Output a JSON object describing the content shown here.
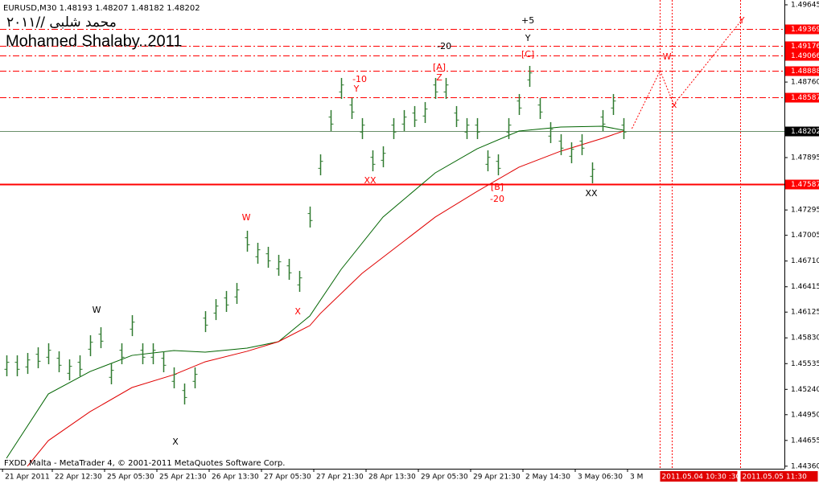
{
  "header": {
    "symbol": "EURUSD,M30  1.48193 1.48207 1.48182 1.48202",
    "arabic": "محمد شلبى //٢٠١١",
    "author": "Mohamed Shalaby..2011",
    "footer": "FXDD Malta - MetaTrader 4, © 2001-2011 MetaQuotes Software Corp."
  },
  "chart_data": {
    "type": "ohlc",
    "color": "#2f7a2f",
    "open": [
      1.4547,
      1.4555,
      1.45497,
      1.45642,
      1.45608,
      1.45596,
      1.45424,
      1.4555,
      1.457,
      1.45872,
      1.45378,
      1.45688,
      1.4593,
      1.45688,
      1.45608,
      1.45596,
      1.45332,
      1.45227,
      1.45332,
      1.46056,
      1.46114,
      1.46287,
      1.46299,
      1.46977,
      1.46759,
      1.46793,
      1.46621,
      1.46655,
      1.46437,
      1.47254,
      1.47772,
      1.48359,
      1.48647,
      1.48497,
      1.48187,
      1.47898,
      1.47864,
      1.48267,
      1.48279,
      1.48405,
      1.48371,
      1.48727,
      1.48647,
      1.48405,
      1.48187,
      1.48267,
      1.47818,
      1.47852,
      1.48187,
      1.48543,
      1.48785,
      1.48497,
      1.48141,
      1.48083,
      1.4791,
      1.48083,
      1.4768,
      1.48359,
      1.48463,
      1.48267
    ],
    "high": [
      1.4563,
      1.4563,
      1.45657,
      1.45722,
      1.45768,
      1.45676,
      1.45584,
      1.4563,
      1.4586,
      1.45952,
      1.45538,
      1.45768,
      1.4609,
      1.45768,
      1.45768,
      1.45676,
      1.45492,
      1.45307,
      1.45492,
      1.46136,
      1.46274,
      1.46367,
      1.46459,
      1.47057,
      1.46919,
      1.46873,
      1.46781,
      1.46735,
      1.46597,
      1.47334,
      1.47932,
      1.48439,
      1.48807,
      1.48577,
      1.48347,
      1.47978,
      1.48024,
      1.48347,
      1.48439,
      1.48485,
      1.48531,
      1.48807,
      1.48807,
      1.48485,
      1.48347,
      1.48347,
      1.47978,
      1.47932,
      1.48347,
      1.48623,
      1.48945,
      1.48577,
      1.48301,
      1.48163,
      1.4807,
      1.48163,
      1.4784,
      1.48439,
      1.48623,
      1.48347
    ],
    "low": [
      1.4539,
      1.4539,
      1.45417,
      1.45482,
      1.45528,
      1.45436,
      1.45344,
      1.4539,
      1.4562,
      1.45712,
      1.45298,
      1.45528,
      1.4585,
      1.45528,
      1.45528,
      1.45436,
      1.45252,
      1.45067,
      1.45252,
      1.45896,
      1.46034,
      1.46127,
      1.46219,
      1.46817,
      1.46679,
      1.46633,
      1.46541,
      1.46495,
      1.46357,
      1.47094,
      1.47692,
      1.48199,
      1.48567,
      1.48337,
      1.48107,
      1.47738,
      1.47784,
      1.48107,
      1.48199,
      1.48245,
      1.48291,
      1.48567,
      1.48567,
      1.48245,
      1.48107,
      1.48107,
      1.47738,
      1.47692,
      1.48107,
      1.48383,
      1.48705,
      1.48337,
      1.48061,
      1.47923,
      1.4783,
      1.47923,
      1.476,
      1.48199,
      1.48383,
      1.48107
    ],
    "close": [
      1.4555,
      1.4547,
      1.45577,
      1.45562,
      1.45688,
      1.45516,
      1.45504,
      1.4547,
      1.4578,
      1.45792,
      1.45458,
      1.45608,
      1.4601,
      1.45608,
      1.45688,
      1.45516,
      1.45412,
      1.45147,
      1.45412,
      1.45976,
      1.46194,
      1.46207,
      1.46379,
      1.46897,
      1.46839,
      1.46713,
      1.46701,
      1.46575,
      1.46517,
      1.47174,
      1.47852,
      1.48279,
      1.48727,
      1.48417,
      1.48267,
      1.47818,
      1.47944,
      1.48187,
      1.48359,
      1.48325,
      1.48451,
      1.48647,
      1.48727,
      1.48325,
      1.48267,
      1.48187,
      1.47898,
      1.47772,
      1.48267,
      1.48463,
      1.48865,
      1.48417,
      1.48221,
      1.48003,
      1.4799,
      1.48003,
      1.4776,
      1.48279,
      1.48543,
      1.48187
    ],
    "xlim": [
      -0.62,
      74.38
    ],
    "xticks": [
      {
        "value": -0.38,
        "label": "21 Apr 2011"
      },
      {
        "value": 4.38,
        "label": "22 Apr 12:30"
      },
      {
        "value": 9.38,
        "label": "25 Apr 05:30"
      },
      {
        "value": 14.38,
        "label": "25 Apr 21:30"
      },
      {
        "value": 19.38,
        "label": "26 Apr 13:30"
      },
      {
        "value": 24.38,
        "label": "27 Apr 05:30"
      },
      {
        "value": 29.38,
        "label": "27 Apr 21:30"
      },
      {
        "value": 34.38,
        "label": "28 Apr 13:30"
      },
      {
        "value": 39.38,
        "label": "29 Apr 05:30"
      },
      {
        "value": 44.38,
        "label": "29 Apr 21:30"
      },
      {
        "value": 49.38,
        "label": "2 May 14:30"
      },
      {
        "value": 54.38,
        "label": "3 May 06:30"
      },
      {
        "value": 59.38,
        "label": "3 M"
      }
    ],
    "ylim": [
      1.44331,
      1.497
    ],
    "yticks": [
      1.49645,
      {
        "value": 1.4876,
        "label": "1.48760"
      },
      1.47895,
      1.47295,
      1.47005,
      {
        "value": 1.4671,
        "label": "1.46710"
      },
      1.46415,
      1.46125,
      {
        "value": 1.4583,
        "label": "1.45830"
      },
      1.45535,
      {
        "value": 1.4524,
        "label": "1.45240"
      },
      {
        "value": 1.4495,
        "label": "1.44950"
      },
      1.44655,
      {
        "value": 1.4436,
        "label": "1.44360"
      }
    ],
    "moving_averages": [
      {
        "color": "#006400",
        "x": [
          0,
          1,
          4,
          8,
          12,
          16,
          19,
          23,
          26,
          29,
          32,
          36,
          41,
          45,
          49,
          53,
          57,
          59
        ],
        "values": [
          1.44451,
          1.44635,
          1.45187,
          1.45445,
          1.45629,
          1.45685,
          1.45666,
          1.45712,
          1.45786,
          1.46081,
          1.46615,
          1.47214,
          1.4772,
          1.47996,
          1.48199,
          1.48245,
          1.48254,
          1.48208
        ]
      },
      {
        "color": "#e00000",
        "x": [
          2,
          4,
          8,
          12,
          16,
          19,
          23,
          26,
          29,
          30,
          34,
          38,
          41,
          45,
          49,
          53,
          57,
          59
        ],
        "values": [
          1.44359,
          1.44653,
          1.44985,
          1.45261,
          1.45408,
          1.45556,
          1.45676,
          1.45786,
          1.4597,
          1.46108,
          1.46569,
          1.46937,
          1.47214,
          1.47508,
          1.47785,
          1.47969,
          1.48116,
          1.48199
        ]
      }
    ],
    "levels": [
      {
        "value": 1.49369,
        "color": "#ff0000",
        "style": "dashed"
      },
      {
        "value": 1.49176,
        "color": "#ff0000",
        "style": "dashed"
      },
      {
        "value": 1.49066,
        "color": "#ff0000",
        "style": "dashed"
      },
      {
        "value": 1.48888,
        "color": "#ff0000",
        "style": "dashed"
      },
      {
        "value": 1.48587,
        "color": "#ff0000",
        "style": "dashed"
      },
      {
        "value": 1.47587,
        "color": "#ff0000",
        "style": "solid"
      },
      {
        "value": 1.48202,
        "color": "#6a8f6a",
        "style": "current"
      }
    ],
    "projection": {
      "color": "#ff0000",
      "x": [
        59.8,
        62.5,
        63.8,
        70.3
      ],
      "values": [
        1.48227,
        1.4889,
        1.48503,
        1.4947
      ]
    },
    "vlines": [
      {
        "x": 62.46,
        "label": "2011.05.04 10:30 :30"
      },
      {
        "x": 63.62,
        "label": null
      },
      {
        "x": 70.15,
        "label": "2011.05.05 11:30"
      }
    ],
    "annotations": [
      {
        "text": "W",
        "x": 8.62,
        "price": 1.46145,
        "color": "#000000"
      },
      {
        "text": "X",
        "x": 16.15,
        "price": 1.44635,
        "color": "#000000"
      },
      {
        "text": "W",
        "x": 22.92,
        "price": 1.47204,
        "color": "#ff0000"
      },
      {
        "text": "X",
        "x": 27.85,
        "price": 1.46127,
        "color": "#ff0000"
      },
      {
        "text": "-10",
        "x": 33.77,
        "price": 1.48789,
        "color": "#ff0000"
      },
      {
        "text": "Y",
        "x": 33.46,
        "price": 1.48678,
        "color": "#ff0000"
      },
      {
        "text": "XX",
        "x": 34.77,
        "price": 1.47628,
        "color": "#ff0000"
      },
      {
        "text": "-20",
        "x": 41.85,
        "price": 1.49166,
        "color": "#000000"
      },
      {
        "text": "[A]",
        "x": 41.38,
        "price": 1.48927,
        "color": "#ff0000"
      },
      {
        "text": "Z",
        "x": 41.38,
        "price": 1.48807,
        "color": "#ff0000"
      },
      {
        "text": "[B]",
        "x": 46.92,
        "price": 1.47554,
        "color": "#ff0000"
      },
      {
        "text": "-20",
        "x": 46.92,
        "price": 1.47416,
        "color": "#ff0000"
      },
      {
        "text": "+5",
        "x": 49.85,
        "price": 1.49461,
        "color": "#000000"
      },
      {
        "text": "Y",
        "x": 49.85,
        "price": 1.49258,
        "color": "#000000"
      },
      {
        "text": "[C]",
        "x": 49.85,
        "price": 1.49074,
        "color": "#ff0000"
      },
      {
        "text": "XX",
        "x": 55.92,
        "price": 1.47481,
        "color": "#000000"
      },
      {
        "text": "W",
        "x": 63.15,
        "price": 1.49046,
        "color": "#ff0000"
      },
      {
        "text": "x",
        "x": 63.85,
        "price": 1.48494,
        "color": "#ff0000"
      },
      {
        "text": "Y",
        "x": 70.31,
        "price": 1.49461,
        "color": "#ff0000"
      }
    ]
  }
}
